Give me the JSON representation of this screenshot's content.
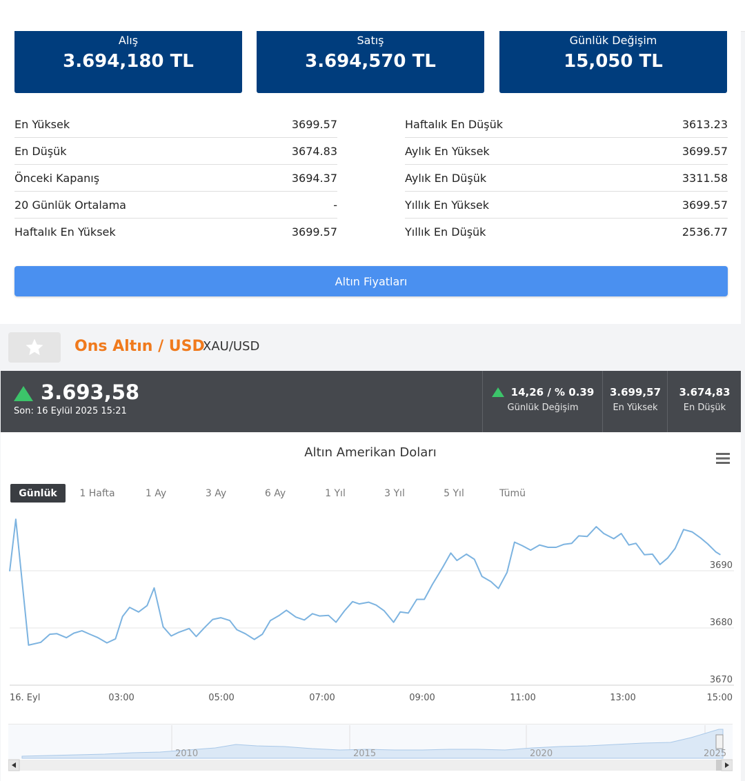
{
  "price_boxes": [
    {
      "label": "Alış",
      "value": "3.694,180 TL"
    },
    {
      "label": "Satış",
      "value": "3.694,570 TL"
    },
    {
      "label": "Günlük Değişim",
      "value": "15,050 TL"
    }
  ],
  "stats_left": [
    {
      "label": "En Yüksek",
      "value": "3699.57"
    },
    {
      "label": "En Düşük",
      "value": "3674.83"
    },
    {
      "label": "Önceki Kapanış",
      "value": "3694.37"
    },
    {
      "label": "20 Günlük Ortalama",
      "value": "-"
    },
    {
      "label": "Haftalık En Yüksek",
      "value": "3699.57"
    }
  ],
  "stats_right": [
    {
      "label": "Haftalık En Düşük",
      "value": "3613.23"
    },
    {
      "label": "Aylık En Yüksek",
      "value": "3699.57"
    },
    {
      "label": "Aylık En Düşük",
      "value": "3311.58"
    },
    {
      "label": "Yıllık En Yüksek",
      "value": "3699.57"
    },
    {
      "label": "Yıllık En Düşük",
      "value": "2536.77"
    }
  ],
  "gold_prices_button": "Altın Fiyatları",
  "instrument": {
    "title": "Ons Altın / USD",
    "code": "XAU/USD",
    "price": "3.693,58",
    "last_update": "Son: 16 Eylül 2025 15:21",
    "change": "14,26 / % 0.39",
    "change_label": "Günlük Değişim",
    "high": "3.699,57",
    "high_label": "En Yüksek",
    "low": "3.674,83",
    "low_label": "En Düşük",
    "up_color": "#3cc46a"
  },
  "chart_data": {
    "type": "line",
    "title": "Altın Amerikan Doları",
    "range_buttons": [
      "Günlük",
      "1 Hafta",
      "1 Ay",
      "3 Ay",
      "6 Ay",
      "1 Yıl",
      "3 Yıl",
      "5 Yıl",
      "Tümü"
    ],
    "active_range": "Günlük",
    "x_tick_labels": [
      "16. Eyl",
      "03:00",
      "05:00",
      "07:00",
      "09:00",
      "11:00",
      "13:00",
      "15:00"
    ],
    "y_tick_labels": [
      "3670",
      "3680",
      "3690"
    ],
    "ylim": [
      3670,
      3699.5
    ],
    "x_hours": [
      0.0,
      0.13,
      0.4,
      0.66,
      0.85,
      1.0,
      1.2,
      1.36,
      1.53,
      1.73,
      1.87,
      2.06,
      2.24,
      2.39,
      2.54,
      2.73,
      2.91,
      3.06,
      3.25,
      3.42,
      3.57,
      3.8,
      3.95,
      4.13,
      4.3,
      4.47,
      4.66,
      4.81,
      4.99,
      5.18,
      5.35,
      5.52,
      5.71,
      5.86,
      6.06,
      6.24,
      6.41,
      6.56,
      6.75,
      6.91,
      7.09,
      7.26,
      7.4,
      7.6,
      7.76,
      7.93,
      8.13,
      8.27,
      8.44,
      8.62,
      8.78,
      8.95,
      9.17,
      9.34,
      9.47,
      9.67,
      9.84,
      10.0,
      10.19,
      10.35,
      10.53,
      10.69,
      10.85,
      11.03,
      11.22,
      11.4,
      11.57,
      11.73,
      11.9,
      12.05,
      12.23,
      12.42,
      12.58,
      12.79,
      12.95,
      13.11,
      13.26,
      13.44,
      13.61,
      13.77,
      13.93,
      14.09,
      14.27,
      14.45,
      14.62,
      14.78,
      14.95,
      15.05
    ],
    "values": [
      3689.9,
      3699.0,
      3677.0,
      3677.5,
      3678.9,
      3679.0,
      3678.3,
      3679.1,
      3679.5,
      3678.8,
      3678.3,
      3677.4,
      3678.1,
      3682.0,
      3683.6,
      3682.8,
      3683.9,
      3687.0,
      3680.2,
      3678.6,
      3679.2,
      3679.9,
      3678.5,
      3680.1,
      3681.5,
      3681.8,
      3681.3,
      3679.7,
      3679.0,
      3678.0,
      3678.9,
      3681.3,
      3682.2,
      3683.1,
      3681.9,
      3681.4,
      3682.5,
      3682.1,
      3682.2,
      3681.0,
      3683.0,
      3684.6,
      3684.2,
      3684.5,
      3684.0,
      3683.0,
      3681.0,
      3682.8,
      3682.6,
      3685.0,
      3685.0,
      3687.6,
      3690.6,
      3693.1,
      3691.8,
      3692.9,
      3692.0,
      3689.0,
      3688.1,
      3686.9,
      3689.7,
      3695.0,
      3694.4,
      3693.6,
      3694.5,
      3694.1,
      3694.1,
      3694.6,
      3694.8,
      3696.1,
      3696.0,
      3697.7,
      3696.5,
      3695.6,
      3696.5,
      3694.5,
      3694.8,
      3692.8,
      3692.9,
      3691.1,
      3692.2,
      3693.9,
      3697.2,
      3696.8,
      3695.8,
      3694.7,
      3693.3,
      3692.8
    ],
    "navigator_x_labels": [
      "2010",
      "2015",
      "2020",
      "2025"
    ],
    "line_color": "#7cb3e0"
  }
}
